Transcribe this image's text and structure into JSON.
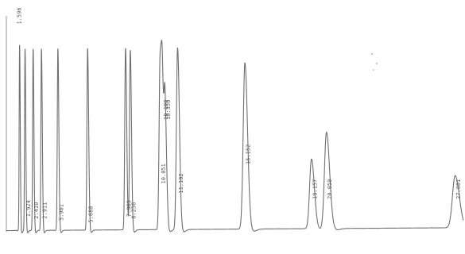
{
  "chart_data": {
    "type": "line",
    "title": "",
    "xlabel": "",
    "ylabel": "",
    "x_unit": "min",
    "xlim": [
      0.8,
      28.3
    ],
    "ylim": [
      0,
      100
    ],
    "peaks": [
      {
        "rt": 1.596,
        "label": "1.596",
        "height": 96,
        "width": 0.025
      },
      {
        "rt": 1.924,
        "label": "1.924",
        "height": 94,
        "width": 0.028
      },
      {
        "rt": 2.41,
        "label": "2.410",
        "height": 94,
        "width": 0.03
      },
      {
        "rt": 2.911,
        "label": "2.911",
        "height": 94,
        "width": 0.032
      },
      {
        "rt": 3.901,
        "label": "3.901",
        "height": 94,
        "width": 0.035
      },
      {
        "rt": 5.688,
        "label": "5.688",
        "height": 94,
        "width": 0.04
      },
      {
        "rt": 7.969,
        "label": "7.969",
        "height": 94,
        "width": 0.045
      },
      {
        "rt": 8.256,
        "label": "8.256",
        "height": 94,
        "width": 0.045
      },
      {
        "rt": 10.051,
        "label": "10.051",
        "height": 88,
        "width": 0.06
      },
      {
        "rt": 10.19,
        "label": "10.190",
        "height": 58,
        "width": 0.06
      },
      {
        "rt": 10.35,
        "label": "10.350",
        "height": 60,
        "width": 0.06
      },
      {
        "rt": 11.102,
        "label": "11.102",
        "height": 94,
        "width": 0.07
      },
      {
        "rt": 15.152,
        "label": "15.152",
        "height": 86,
        "width": 0.1
      },
      {
        "rt": 19.157,
        "label": "19.157",
        "height": 36,
        "width": 0.11
      },
      {
        "rt": 20.059,
        "label": "20.059",
        "height": 50,
        "width": 0.12
      },
      {
        "rt": 27.801,
        "label": "27.801",
        "height": 27,
        "width": 0.16
      }
    ]
  }
}
